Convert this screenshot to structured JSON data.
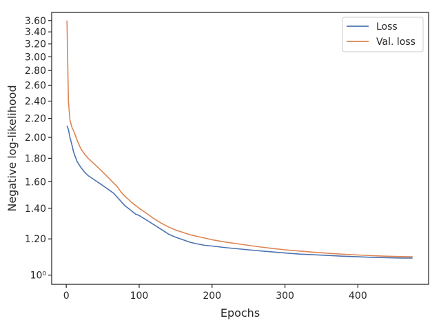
{
  "chart_data": {
    "type": "line",
    "xlabel": "Epochs",
    "ylabel": "Negative log-likelihood",
    "y_scale": "log",
    "xlim": [
      -20,
      497
    ],
    "ylim": [
      0.955,
      3.75
    ],
    "grid": false,
    "legend_position": "top-right",
    "x_ticks": [
      {
        "value": 0,
        "label": "0"
      },
      {
        "value": 100,
        "label": "100"
      },
      {
        "value": 200,
        "label": "200"
      },
      {
        "value": 300,
        "label": "300"
      },
      {
        "value": 400,
        "label": "400"
      }
    ],
    "y_ticks": [
      {
        "value": 1.0,
        "label": "10⁰"
      },
      {
        "value": 1.2,
        "label": "1.20"
      },
      {
        "value": 1.4,
        "label": "1.40"
      },
      {
        "value": 1.6,
        "label": "1.60"
      },
      {
        "value": 1.8,
        "label": "1.80"
      },
      {
        "value": 2.0,
        "label": "2.00"
      },
      {
        "value": 2.2,
        "label": "2.20"
      },
      {
        "value": 2.4,
        "label": "2.40"
      },
      {
        "value": 2.6,
        "label": "2.60"
      },
      {
        "value": 2.8,
        "label": "2.80"
      },
      {
        "value": 3.0,
        "label": "3.00"
      },
      {
        "value": 3.2,
        "label": "3.20"
      },
      {
        "value": 3.4,
        "label": "3.40"
      },
      {
        "value": 3.6,
        "label": "3.60"
      }
    ],
    "series": [
      {
        "name": "Loss",
        "color": "#4c72b0",
        "x": [
          1,
          3,
          5,
          8,
          10,
          12,
          15,
          18,
          20,
          25,
          30,
          35,
          40,
          45,
          50,
          55,
          60,
          65,
          70,
          75,
          80,
          85,
          90,
          95,
          100,
          110,
          120,
          130,
          140,
          150,
          160,
          170,
          180,
          190,
          200,
          220,
          240,
          260,
          280,
          300,
          320,
          340,
          360,
          380,
          400,
          420,
          440,
          460,
          475
        ],
        "y": [
          2.12,
          2.08,
          2.0,
          1.92,
          1.86,
          1.82,
          1.77,
          1.74,
          1.72,
          1.68,
          1.65,
          1.63,
          1.61,
          1.59,
          1.57,
          1.55,
          1.53,
          1.51,
          1.48,
          1.45,
          1.42,
          1.4,
          1.38,
          1.36,
          1.35,
          1.32,
          1.29,
          1.26,
          1.23,
          1.21,
          1.195,
          1.18,
          1.17,
          1.162,
          1.158,
          1.148,
          1.14,
          1.132,
          1.125,
          1.118,
          1.112,
          1.108,
          1.104,
          1.1,
          1.097,
          1.094,
          1.092,
          1.09,
          1.09
        ]
      },
      {
        "name": "Val. loss",
        "color": "#dd8452",
        "x": [
          1,
          2,
          3,
          5,
          8,
          10,
          12,
          15,
          18,
          20,
          25,
          30,
          35,
          40,
          45,
          50,
          55,
          60,
          65,
          70,
          75,
          80,
          85,
          90,
          95,
          100,
          110,
          120,
          130,
          140,
          150,
          160,
          170,
          180,
          190,
          200,
          220,
          240,
          260,
          280,
          300,
          320,
          340,
          360,
          380,
          400,
          420,
          440,
          460,
          475
        ],
        "y": [
          3.6,
          2.9,
          2.4,
          2.18,
          2.1,
          2.07,
          2.03,
          1.97,
          1.92,
          1.89,
          1.84,
          1.8,
          1.77,
          1.74,
          1.71,
          1.68,
          1.65,
          1.62,
          1.59,
          1.56,
          1.52,
          1.49,
          1.465,
          1.44,
          1.42,
          1.4,
          1.365,
          1.33,
          1.3,
          1.275,
          1.255,
          1.24,
          1.225,
          1.215,
          1.205,
          1.195,
          1.18,
          1.168,
          1.156,
          1.145,
          1.136,
          1.129,
          1.122,
          1.116,
          1.111,
          1.107,
          1.103,
          1.1,
          1.098,
          1.097
        ]
      }
    ]
  }
}
